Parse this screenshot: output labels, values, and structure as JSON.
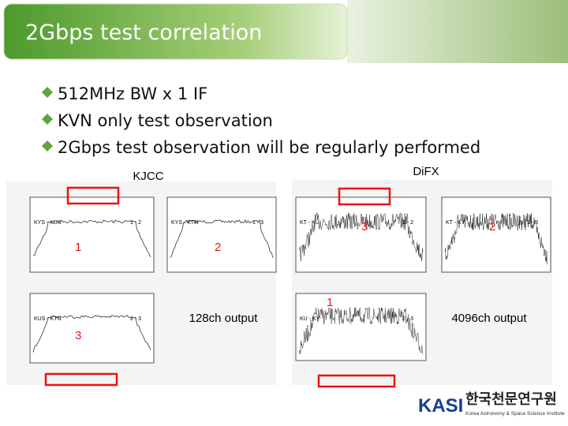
{
  "header": {
    "title": "2Gbps test correlation"
  },
  "bullets": [
    "512MHz BW x 1 IF",
    "KVN only test observation",
    "2Gbps test observation will be regularly performed"
  ],
  "left": {
    "label": "KJCC",
    "output": "128ch output",
    "panels": [
      {
        "name": "KYS - KUS",
        "pair": "1 - 2",
        "marker": "1"
      },
      {
        "name": "KYS - KTN",
        "pair": "1 - 3",
        "marker": "2"
      },
      {
        "name": "KUS - KTN",
        "pair": "2 - 3",
        "marker": "3"
      }
    ]
  },
  "right": {
    "label": "DiFX",
    "output": "4096ch output",
    "panels": [
      {
        "name": "KT - KU",
        "pair": "1 - 2",
        "marker": "3"
      },
      {
        "name": "KT - KY",
        "pair": "1 - 3",
        "marker": "2"
      },
      {
        "name": "KU - KY",
        "pair": "2 - 3",
        "marker": "1"
      }
    ]
  },
  "logo": {
    "mark": "KASI",
    "name": "한국천문연구원",
    "subtitle": "Korea Astronomy & Space Science Institute"
  }
}
